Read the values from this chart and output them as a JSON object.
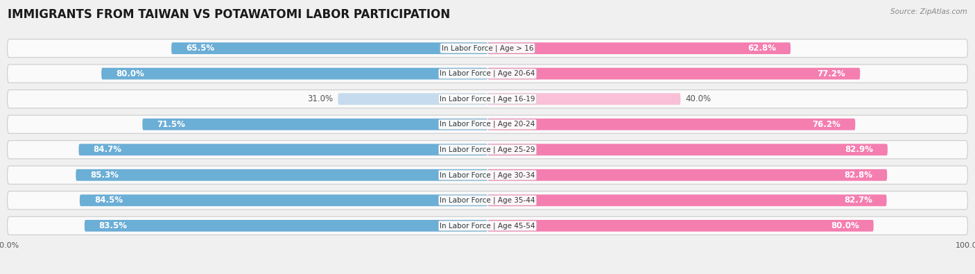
{
  "title": "IMMIGRANTS FROM TAIWAN VS POTAWATOMI LABOR PARTICIPATION",
  "source": "Source: ZipAtlas.com",
  "categories": [
    "In Labor Force | Age > 16",
    "In Labor Force | Age 20-64",
    "In Labor Force | Age 16-19",
    "In Labor Force | Age 20-24",
    "In Labor Force | Age 25-29",
    "In Labor Force | Age 30-34",
    "In Labor Force | Age 35-44",
    "In Labor Force | Age 45-54"
  ],
  "taiwan_values": [
    65.5,
    80.0,
    31.0,
    71.5,
    84.7,
    85.3,
    84.5,
    83.5
  ],
  "potawatomi_values": [
    62.8,
    77.2,
    40.0,
    76.2,
    82.9,
    82.8,
    82.7,
    80.0
  ],
  "taiwan_color": "#6BAED6",
  "potawatomi_color": "#F47EB0",
  "taiwan_light_color": "#C6DCEE",
  "potawatomi_light_color": "#F9C0D8",
  "bg_color": "#F0F0F0",
  "row_bg_color": "#FAFAFA",
  "title_fontsize": 12,
  "bar_label_fontsize": 8.5,
  "cat_label_fontsize": 7.5,
  "legend_fontsize": 9,
  "axis_label_fontsize": 8,
  "max_value": 100.0,
  "light_threshold": 50
}
